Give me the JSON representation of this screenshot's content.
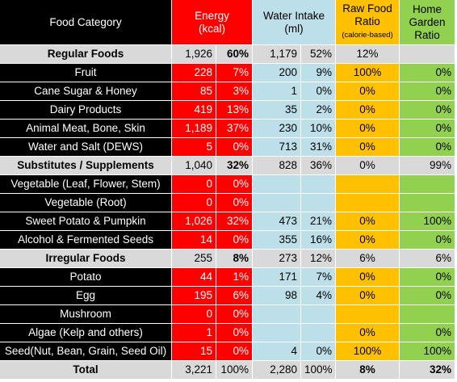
{
  "headers": {
    "food_category": "Food Category",
    "energy_1": "Energy",
    "energy_2": "(kcal)",
    "water_1": "Water Intake",
    "water_2": "(ml)",
    "raw_1": "Raw Food",
    "raw_2": "Ratio",
    "raw_3": "(calorie-based)",
    "home_1": "Home",
    "home_2": "Garden",
    "home_3": "Ratio"
  },
  "rows": [
    {
      "name": "Regular Foods",
      "ek": "1,926",
      "ep": "60%",
      "wm": "1,179",
      "wp": "52%",
      "raw": "12%",
      "home": ""
    },
    {
      "name": "Fruit",
      "ek": "228",
      "ep": "7%",
      "wm": "200",
      "wp": "9%",
      "raw": "100%",
      "home": "0%"
    },
    {
      "name": "Cane Sugar & Honey",
      "ek": "85",
      "ep": "3%",
      "wm": "1",
      "wp": "0%",
      "raw": "0%",
      "home": "0%"
    },
    {
      "name": "Dairy Products",
      "ek": "419",
      "ep": "13%",
      "wm": "35",
      "wp": "2%",
      "raw": "0%",
      "home": "0%"
    },
    {
      "name": "Animal Meat, Bone, Skin",
      "ek": "1,189",
      "ep": "37%",
      "wm": "230",
      "wp": "10%",
      "raw": "0%",
      "home": "0%"
    },
    {
      "name": "Water and Salt (DEWS)",
      "ek": "5",
      "ep": "0%",
      "wm": "713",
      "wp": "31%",
      "raw": "0%",
      "home": "0%"
    },
    {
      "name": "Substitutes / Supplements",
      "ek": "1,040",
      "ep": "32%",
      "wm": "828",
      "wp": "36%",
      "raw": "0%",
      "home": "99%"
    },
    {
      "name": "Vegetable (Leaf, Flower, Stem)",
      "ek": "0",
      "ep": "0%",
      "wm": "",
      "wp": "",
      "raw": "",
      "home": ""
    },
    {
      "name": "Vegetable (Root)",
      "ek": "0",
      "ep": "0%",
      "wm": "",
      "wp": "",
      "raw": "",
      "home": ""
    },
    {
      "name": "Sweet Potato & Pumpkin",
      "ek": "1,026",
      "ep": "32%",
      "wm": "473",
      "wp": "21%",
      "raw": "0%",
      "home": "100%"
    },
    {
      "name": "Alcohol & Fermented Seeds",
      "ek": "14",
      "ep": "0%",
      "wm": "355",
      "wp": "16%",
      "raw": "0%",
      "home": "0%"
    },
    {
      "name": "Irregular Foods",
      "ek": "255",
      "ep": "8%",
      "wm": "273",
      "wp": "12%",
      "raw": "6%",
      "home": "6%"
    },
    {
      "name": "Potato",
      "ek": "44",
      "ep": "1%",
      "wm": "171",
      "wp": "7%",
      "raw": "0%",
      "home": "0%"
    },
    {
      "name": "Egg",
      "ek": "195",
      "ep": "6%",
      "wm": "98",
      "wp": "4%",
      "raw": "0%",
      "home": "0%"
    },
    {
      "name": "Mushroom",
      "ek": "0",
      "ep": "0%",
      "wm": "",
      "wp": "",
      "raw": "",
      "home": ""
    },
    {
      "name": "Algae (Kelp and others)",
      "ek": "1",
      "ep": "0%",
      "wm": "",
      "wp": "",
      "raw": "0%",
      "home": "0%"
    },
    {
      "name": "Seed(Nut, Bean, Grain, Seed Oil)",
      "ek": "15",
      "ep": "0%",
      "wm": "4",
      "wp": "0%",
      "raw": "100%",
      "home": "100%"
    },
    {
      "name": "Total",
      "ek": "3,221",
      "ep": "100%",
      "wm": "2,280",
      "wp": "100%",
      "raw": "8%",
      "home": "32%"
    }
  ],
  "colors": {
    "black": "#000000",
    "red": "#ff0000",
    "light_blue": "#bddfe9",
    "orange": "#ffc000",
    "green": "#92d050",
    "gray": "#d9d9d9"
  }
}
